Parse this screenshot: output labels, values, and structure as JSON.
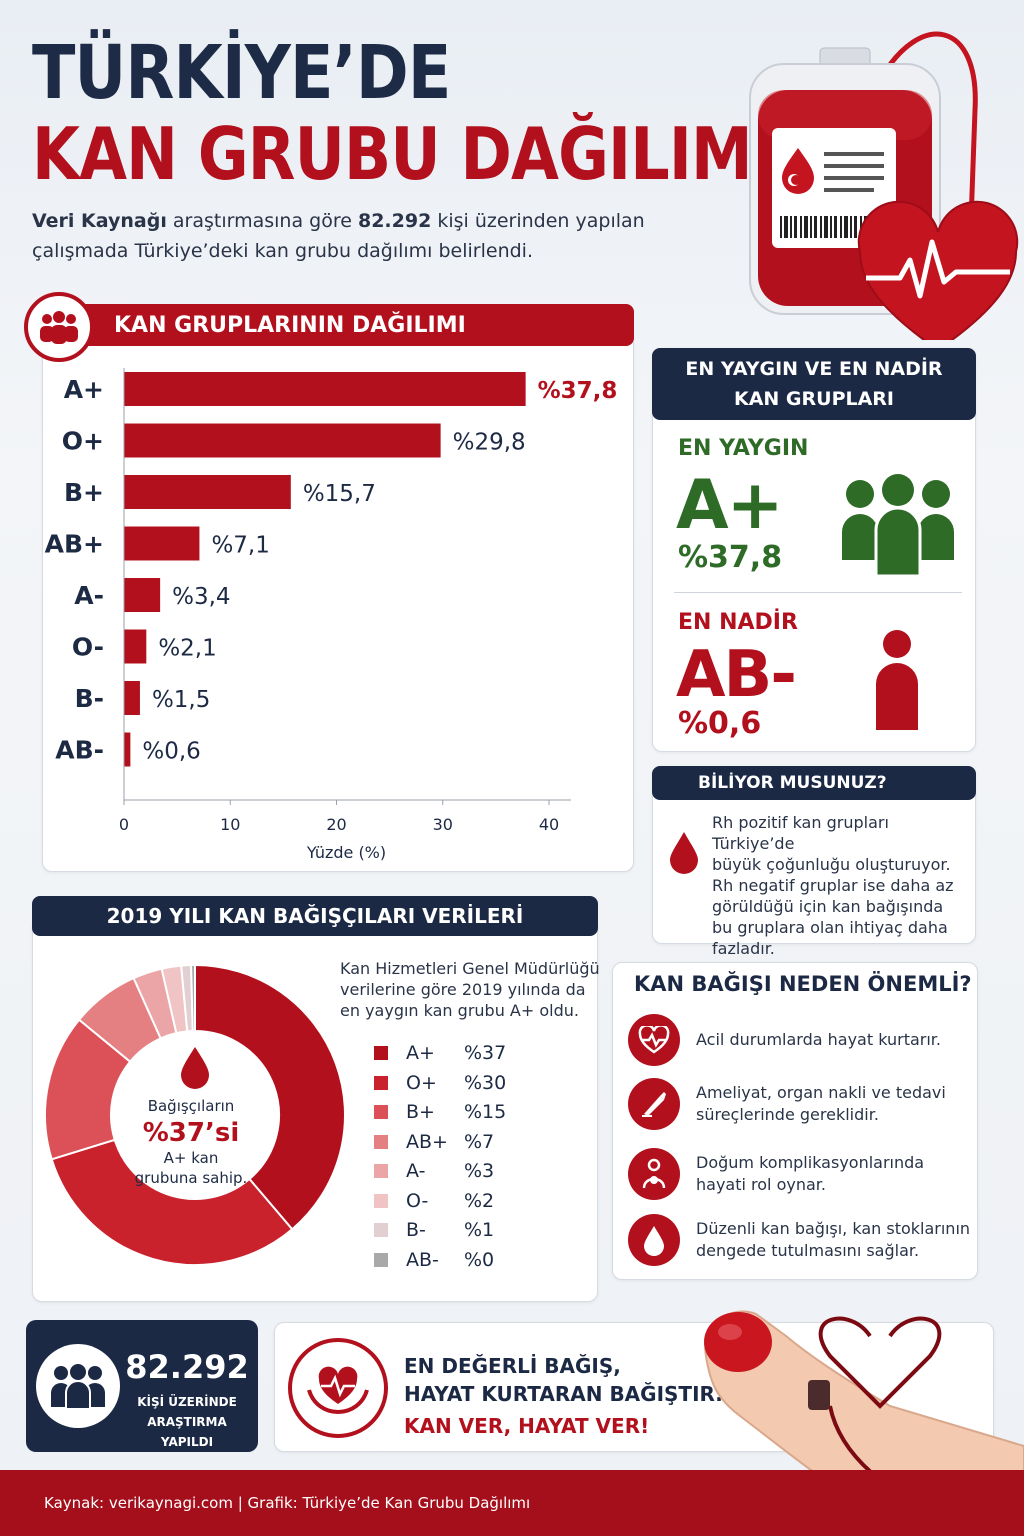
{
  "header": {
    "title_line1": "TÜRKİYE’DE",
    "title_line2": "KAN GRUBU DAĞILIMI",
    "intro_source": "Veri Kaynağı",
    "intro_part1": " araştırmasına göre ",
    "intro_count": "82.292",
    "intro_part2": " kişi üzerinden yapılan",
    "intro_line2": "çalışmada Türkiye’deki kan grubu dağılımı belirlendi."
  },
  "distribution": {
    "title": "KAN GRUPLARININ DAĞILIMI",
    "xlabel": "Yüzde (%)"
  },
  "chart_data": [
    {
      "type": "bar",
      "orientation": "horizontal",
      "title": "KAN GRUPLARININ DAĞILIMI",
      "xlabel": "Yüzde (%)",
      "xlim": [
        0,
        40
      ],
      "xticks": [
        "0",
        "10",
        "20",
        "30",
        "40"
      ],
      "categories": [
        "A+",
        "O+",
        "B+",
        "AB+",
        "A-",
        "O-",
        "B-",
        "AB-"
      ],
      "values": [
        37.8,
        29.8,
        15.7,
        7.1,
        3.4,
        2.1,
        1.5,
        0.6
      ],
      "labels": [
        "%37,8",
        "%29,8",
        "%15,7",
        "%7,1",
        "%3,4",
        "%2,1",
        "%1,5",
        "%0,6"
      ],
      "bar_color": "#b3101d",
      "highlight_label_color": "#b3101d"
    },
    {
      "type": "pie",
      "style": "donut",
      "title": "2019 YILI KAN BAĞIŞÇILARI VERİLERİ",
      "categories": [
        "A+",
        "O+",
        "B+",
        "AB+",
        "A-",
        "O-",
        "B-",
        "AB-"
      ],
      "values": [
        37,
        30,
        15,
        7,
        3,
        2,
        1,
        0.4
      ],
      "labels": [
        "%37",
        "%30",
        "%15",
        "%7",
        "%3",
        "%2",
        "%1",
        "%0"
      ],
      "colors": [
        "#b3101d",
        "#c9222d",
        "#dc5157",
        "#e47f82",
        "#eba5a7",
        "#f0c3c5",
        "#e2cfd1",
        "#a9a9a9"
      ],
      "center_line1": "Bağışçıların",
      "center_value": "%37’si",
      "center_line2": "A+ kan",
      "center_line3": "grubuna sahip."
    }
  ],
  "common_rare": {
    "title_line1": "EN YAYGIN VE EN NADİR",
    "title_line2": "KAN GRUPLARI",
    "common_label": "EN YAYGIN",
    "common_group": "A+",
    "common_value": "%37,8",
    "rare_label": "EN NADİR",
    "rare_group": "AB-",
    "rare_value": "%0,6",
    "common_color": "#2e6b27",
    "rare_color": "#b3101d"
  },
  "fact": {
    "title": "BİLİYOR MUSUNUZ?",
    "lines": [
      "Rh pozitif kan grupları Türkiye’de",
      "büyük çoğunluğu oluşturuyor.",
      "Rh negatif gruplar ise daha az",
      "görüldüğü için kan bağışında",
      "bu gruplara olan ihtiyaç daha",
      "fazladır."
    ]
  },
  "donors": {
    "title": "2019 YILI KAN BAĞIŞÇILARI VERİLERİ",
    "desc_lines": [
      "Kan Hizmetleri Genel Müdürlüğü",
      "verilerine göre 2019 yılında da",
      "en yaygın kan grubu A+ oldu."
    ]
  },
  "why": {
    "title": "KAN BAĞIŞI NEDEN ÖNEMLİ?",
    "items": [
      {
        "text": "Acil durumlarda hayat kurtarır.",
        "icon": "heartbeat-icon"
      },
      {
        "text": "Ameliyat, organ nakli ve tedavi süreçlerinde gereklidir.",
        "icon": "scalpel-icon"
      },
      {
        "text": "Doğum komplikasyonlarında hayati rol oynar.",
        "icon": "mother-baby-icon"
      },
      {
        "text": "Düzenli kan bağışı, kan stoklarının dengede tutulmasını sağlar.",
        "icon": "blood-drop-icon"
      }
    ]
  },
  "study": {
    "count": "82.292",
    "line1": "KİŞİ ÜZERİNDE",
    "line2": "ARAŞTIRMA YAPILDI"
  },
  "slogan": {
    "line1": "EN DEĞERLİ BAĞIŞ,",
    "line2": "HAYAT KURTARAN BAĞIŞTIR.",
    "line3": "KAN VER, HAYAT VER!"
  },
  "footer": {
    "text": "Kaynak: verikaynagi.com  |  Grafik: Türkiye’de Kan Grubu Dağılımı"
  }
}
